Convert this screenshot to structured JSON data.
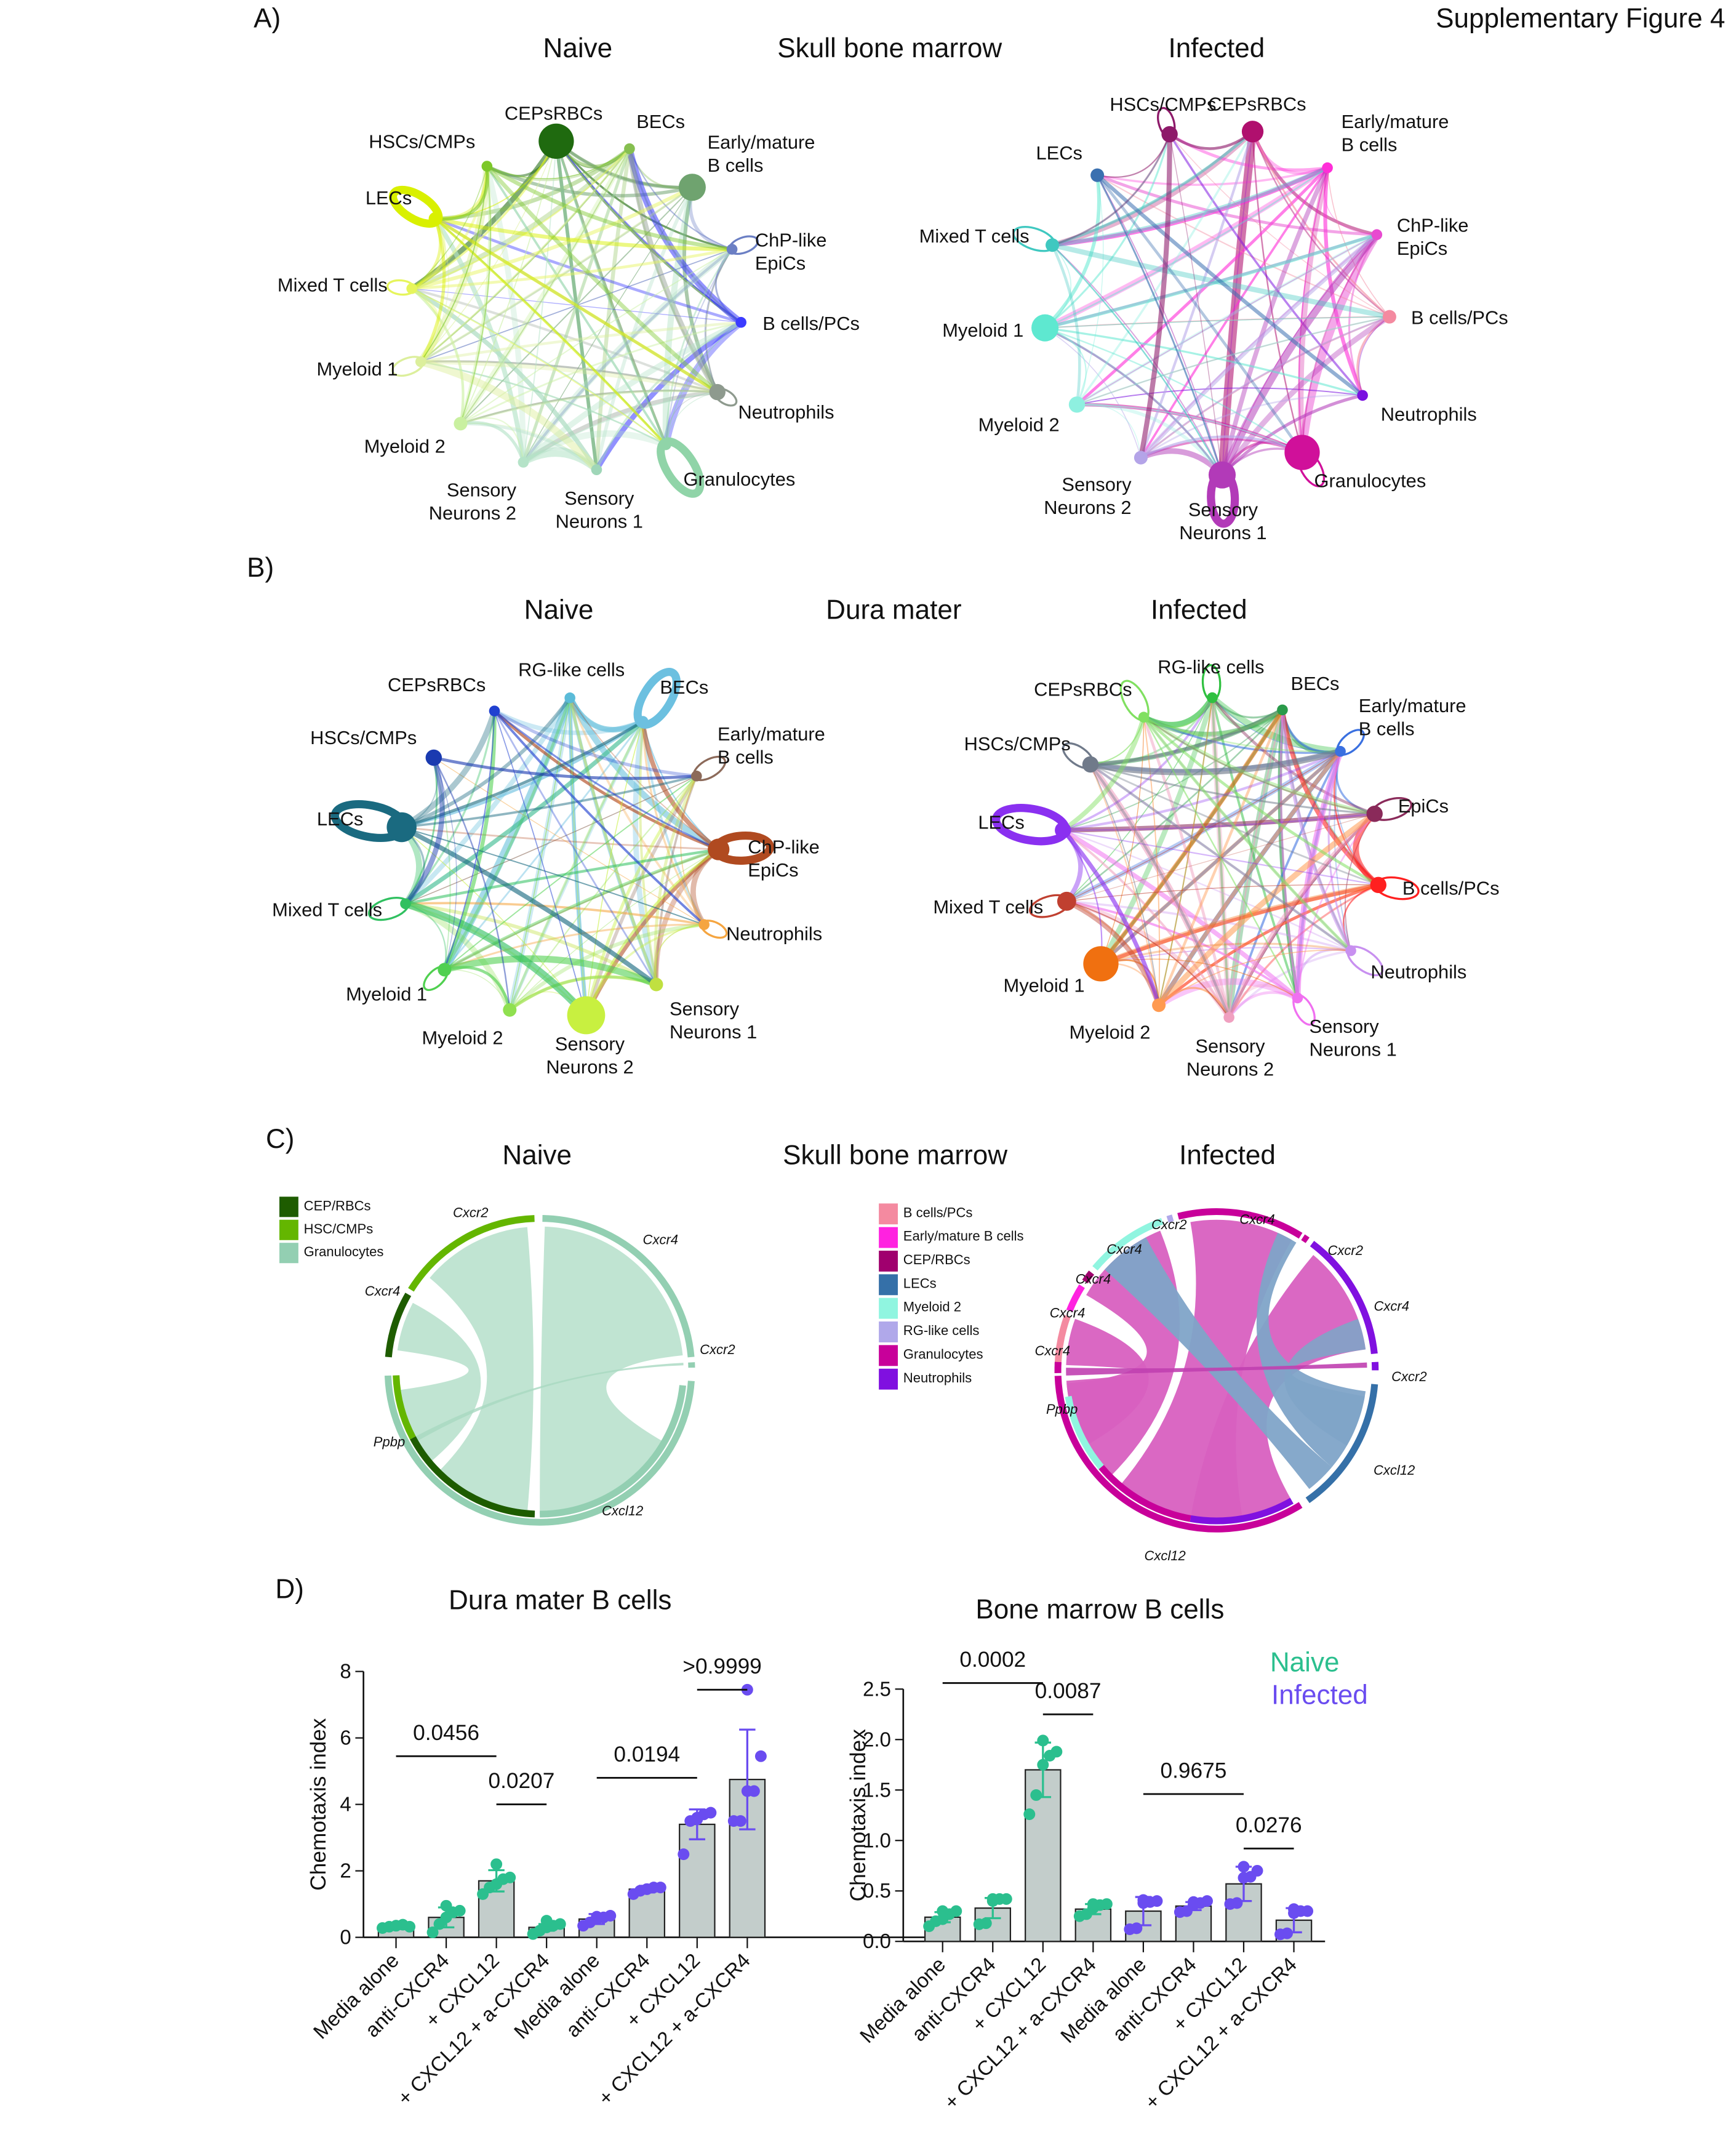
{
  "figure_label": "Supplementary Figure 4",
  "panel_a": {
    "letter": "A)",
    "center_title": "Skull bone marrow",
    "left_title": "Naive",
    "right_title": "Infected",
    "naive_nodes": [
      {
        "label": [
          "CEPsRBCs"
        ],
        "color": "#1f6a0f"
      },
      {
        "label": [
          "BECs"
        ],
        "color": "#86bf50"
      },
      {
        "label": [
          "Early/mature",
          "B cells"
        ],
        "color": "#6fa36f"
      },
      {
        "label": [
          "ChP-like",
          "EpiCs"
        ],
        "color": "#6b7fc4"
      },
      {
        "label": [
          "B cells/PCs"
        ],
        "color": "#3b3bff"
      },
      {
        "label": [
          "Neutrophils"
        ],
        "color": "#8e9a8e"
      },
      {
        "label": [
          "Granulocytes"
        ],
        "color": "#90d4a8"
      },
      {
        "label": [
          "Sensory",
          "Neurons 1"
        ],
        "color": "#9fd6b8"
      },
      {
        "label": [
          "Sensory",
          "Neurons 2"
        ],
        "color": "#b5e3c8"
      },
      {
        "label": [
          "Myeloid 2"
        ],
        "color": "#c9f0a0"
      },
      {
        "label": [
          "Myeloid 1"
        ],
        "color": "#dcef9c"
      },
      {
        "label": [
          "Mixed T cells"
        ],
        "color": "#e6f55c"
      },
      {
        "label": [
          "LECs"
        ],
        "color": "#d9f000"
      },
      {
        "label": [
          "HSCs/CMPs"
        ],
        "color": "#7dc82a"
      }
    ],
    "infected_nodes": [
      {
        "label": [
          "CEPsRBCs"
        ],
        "color": "#b0106e"
      },
      {
        "label": [
          "Early/mature",
          "B cells"
        ],
        "color": "#ff2ed8"
      },
      {
        "label": [
          "ChP-like",
          "EpiCs"
        ],
        "color": "#e84ad0"
      },
      {
        "label": [
          "B cells/PCs"
        ],
        "color": "#f48aa0"
      },
      {
        "label": [
          "Neutrophils"
        ],
        "color": "#7a10e0"
      },
      {
        "label": [
          "Granulocytes"
        ],
        "color": "#d0109a"
      },
      {
        "label": [
          "Sensory",
          "Neurons 1"
        ],
        "color": "#b23ab8"
      },
      {
        "label": [
          "Sensory",
          "Neurons 2"
        ],
        "color": "#b4a4e8"
      },
      {
        "label": [
          "Myeloid 2"
        ],
        "color": "#8ef0e0"
      },
      {
        "label": [
          "Myeloid 1"
        ],
        "color": "#5ee8d0"
      },
      {
        "label": [
          "Mixed T cells"
        ],
        "color": "#3fc8c0"
      },
      {
        "label": [
          "LECs"
        ],
        "color": "#3a70b0"
      },
      {
        "label": [
          "HSCs/CMPs"
        ],
        "color": "#8e1a6a"
      }
    ]
  },
  "panel_b": {
    "letter": "B)",
    "center_title": "Dura mater",
    "left_title": "Naive",
    "right_title": "Infected",
    "naive_nodes": [
      {
        "label": [
          "RG-like cells"
        ],
        "color": "#5bbbd8"
      },
      {
        "label": [
          "BECs"
        ],
        "color": "#6cc0e0"
      },
      {
        "label": [
          "Early/mature",
          "B cells"
        ],
        "color": "#8c6a5a"
      },
      {
        "label": [
          "ChP-like",
          "EpiCs"
        ],
        "color": "#b04a20"
      },
      {
        "label": [
          "Neutrophils"
        ],
        "color": "#f5a540"
      },
      {
        "label": [
          "Sensory",
          "Neurons 1"
        ],
        "color": "#c0e040"
      },
      {
        "label": [
          "Sensory",
          "Neurons 2"
        ],
        "color": "#c8f040"
      },
      {
        "label": [
          "Myeloid 2"
        ],
        "color": "#90e050"
      },
      {
        "label": [
          "Myeloid 1"
        ],
        "color": "#50d050"
      },
      {
        "label": [
          "Mixed T cells"
        ],
        "color": "#30c060"
      },
      {
        "label": [
          "LECs"
        ],
        "color": "#1a6a80"
      },
      {
        "label": [
          "HSCs/CMPs"
        ],
        "color": "#1a3ab0"
      },
      {
        "label": [
          "CEPsRBCs"
        ],
        "color": "#2040d0"
      }
    ],
    "infected_nodes": [
      {
        "label": [
          "RG-like cells"
        ],
        "color": "#30c040"
      },
      {
        "label": [
          "BECs"
        ],
        "color": "#2a9a4a"
      },
      {
        "label": [
          "Early/mature",
          "B cells"
        ],
        "color": "#3a70e0"
      },
      {
        "label": [
          "EpiCs"
        ],
        "color": "#8a2a5a"
      },
      {
        "label": [
          "B cells/PCs"
        ],
        "color": "#ff2020"
      },
      {
        "label": [
          "Neutrophils"
        ],
        "color": "#c890f0"
      },
      {
        "label": [
          "Sensory",
          "Neurons 1"
        ],
        "color": "#f070f0"
      },
      {
        "label": [
          "Sensory",
          "Neurons 2"
        ],
        "color": "#f0a0c0"
      },
      {
        "label": [
          "Myeloid 2"
        ],
        "color": "#ff9a50"
      },
      {
        "label": [
          "Myeloid 1"
        ],
        "color": "#f07010"
      },
      {
        "label": [
          "Mixed T cells"
        ],
        "color": "#c04030"
      },
      {
        "label": [
          "LECs"
        ],
        "color": "#8a30f0"
      },
      {
        "label": [
          "HSCs/CMPs"
        ],
        "color": "#707a8a"
      },
      {
        "label": [
          "CEPsRBCs"
        ],
        "color": "#80e060"
      }
    ]
  },
  "panel_c": {
    "letter": "C)",
    "center_title": "Skull bone marrow",
    "left_title": "Naive",
    "right_title": "Infected",
    "naive_legend": [
      {
        "label": "CEP/RBCs",
        "color": "#1e5c00"
      },
      {
        "label": "HSC/CMPs",
        "color": "#64b600"
      },
      {
        "label": "Granulocytes",
        "color": "#93cfb2"
      }
    ],
    "naive_genes": [
      "Cxcr2",
      "Cxcr4",
      "Cxcr4",
      "Cxcr2",
      "Ppbp",
      "Cxcl12"
    ],
    "infected_legend": [
      {
        "label": "B cells/PCs",
        "color": "#f48aa0"
      },
      {
        "label": "Early/mature B cells",
        "color": "#ff22e0"
      },
      {
        "label": "CEP/RBCs",
        "color": "#a0006e"
      },
      {
        "label": "LECs",
        "color": "#3570a8"
      },
      {
        "label": "Myeloid 2",
        "color": "#90f5e0"
      },
      {
        "label": "RG-like cells",
        "color": "#b0a8ea"
      },
      {
        "label": "Granulocytes",
        "color": "#c8009a"
      },
      {
        "label": "Neutrophils",
        "color": "#8010e0"
      }
    ],
    "infected_genes": [
      "Cxcr2",
      "Cxcr4",
      "Cxcr4",
      "Cxcr2",
      "Cxcr4",
      "Cxcr4",
      "Cxcr4",
      "Cxcr4",
      "Cxcr2",
      "Ppbp",
      "Cxcl12",
      "Cxcl12"
    ]
  },
  "panel_d": {
    "letter": "D)",
    "legend": [
      {
        "label": "Naive",
        "color": "#2bbf8e"
      },
      {
        "label": "Infected",
        "color": "#6a4cf0"
      }
    ]
  },
  "chart_data": [
    {
      "type": "bar",
      "title": "Dura mater B cells",
      "ylabel": "Chemotaxis index",
      "xlabel": "",
      "ylim": [
        0,
        8
      ],
      "yticks": [
        "0",
        "2",
        "4",
        "6",
        "8"
      ],
      "categories": [
        "Media alone",
        "anti-CXCR4",
        "+ CXCL12",
        "+ CXCL12 + a-CXCR4",
        "Media alone",
        "anti-CXCR4",
        "+ CXCL12",
        "+ CXCL12 + a-CXCR4"
      ],
      "group": [
        "Naive",
        "Naive",
        "Naive",
        "Naive",
        "Infected",
        "Infected",
        "Infected",
        "Infected"
      ],
      "values": [
        0.3,
        0.6,
        1.7,
        0.3,
        0.55,
        1.45,
        3.4,
        4.75
      ],
      "error": [
        0.05,
        0.3,
        0.32,
        0.1,
        0.15,
        0.1,
        0.45,
        1.5
      ],
      "points": [
        [
          0.28,
          0.32,
          0.35,
          0.38,
          0.32,
          0.35
        ],
        [
          0.15,
          0.4,
          0.6,
          0.75,
          0.8,
          0.95
        ],
        [
          1.3,
          1.5,
          1.6,
          1.75,
          1.8,
          2.2
        ],
        [
          0.1,
          0.2,
          0.3,
          0.35,
          0.4,
          0.5
        ],
        [
          0.35,
          0.45,
          0.55,
          0.6,
          0.65,
          0.62
        ],
        [
          1.3,
          1.4,
          1.45,
          1.5,
          1.5,
          1.45
        ],
        [
          2.5,
          3.5,
          3.55,
          3.7,
          3.75,
          3.6
        ],
        [
          3.5,
          3.5,
          4.4,
          4.4,
          5.45,
          7.45
        ]
      ],
      "comparisons": [
        {
          "from": 0,
          "to": 2,
          "y": 5.45,
          "p": "0.0456"
        },
        {
          "from": 2,
          "to": 3,
          "y": 4.0,
          "p": "0.0207"
        },
        {
          "from": 4,
          "to": 6,
          "y": 4.8,
          "p": "0.0194"
        },
        {
          "from": 6,
          "to": 7,
          "y": 7.45,
          "p": ">0.9999"
        }
      ]
    },
    {
      "type": "bar",
      "title": "Bone marrow B cells",
      "ylabel": "Chemotaxis index",
      "xlabel": "",
      "ylim": [
        0,
        2.5
      ],
      "yticks": [
        "0.0",
        "0.5",
        "1.0",
        "1.5",
        "2.0",
        "2.5"
      ],
      "categories": [
        "Media alone",
        "anti-CXCR4",
        "+ CXCL12",
        "+ CXCL12 + a-CXCR4",
        "Media alone",
        "anti-CXCR4",
        "+ CXCL12",
        "+ CXCL12 + a-CXCR4"
      ],
      "group": [
        "Naive",
        "Naive",
        "Naive",
        "Naive",
        "Infected",
        "Infected",
        "Infected",
        "Infected"
      ],
      "values": [
        0.24,
        0.33,
        1.7,
        0.32,
        0.3,
        0.35,
        0.57,
        0.21
      ],
      "error": [
        0.05,
        0.1,
        0.27,
        0.05,
        0.14,
        0.04,
        0.17,
        0.12
      ],
      "points": [
        [
          0.15,
          0.2,
          0.22,
          0.27,
          0.3,
          0.3
        ],
        [
          0.17,
          0.18,
          0.4,
          0.42,
          0.42,
          0.42
        ],
        [
          1.26,
          1.45,
          1.75,
          1.84,
          1.88,
          1.99
        ],
        [
          0.25,
          0.27,
          0.33,
          0.36,
          0.37,
          0.37
        ],
        [
          0.12,
          0.13,
          0.38,
          0.39,
          0.4,
          0.41
        ],
        [
          0.29,
          0.3,
          0.36,
          0.38,
          0.4,
          0.39
        ],
        [
          0.37,
          0.38,
          0.63,
          0.64,
          0.7,
          0.74
        ],
        [
          0.07,
          0.08,
          0.28,
          0.3,
          0.3,
          0.32
        ]
      ],
      "comparisons": [
        {
          "from": 0,
          "to": 2,
          "y": 2.56,
          "p": "0.0002"
        },
        {
          "from": 2,
          "to": 3,
          "y": 2.25,
          "p": "0.0087"
        },
        {
          "from": 4,
          "to": 6,
          "y": 1.46,
          "p": "0.9675"
        },
        {
          "from": 6,
          "to": 7,
          "y": 0.92,
          "p": "0.0276"
        }
      ]
    }
  ]
}
